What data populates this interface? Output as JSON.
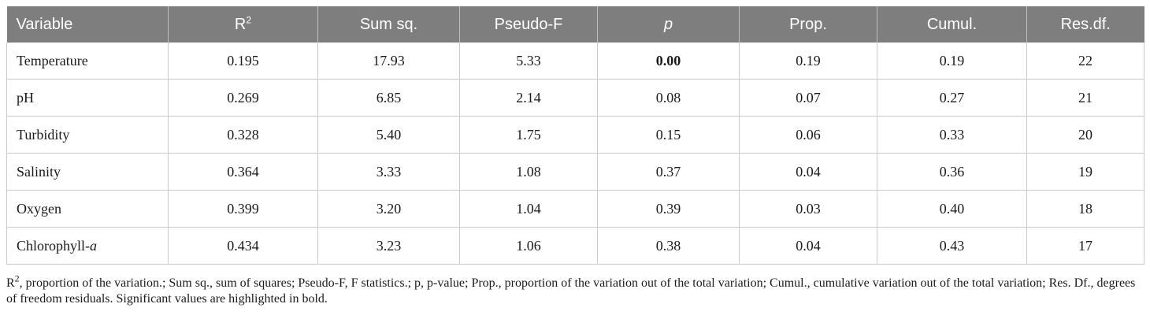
{
  "table": {
    "headers": {
      "variable": "Variable",
      "r_base": "R",
      "r_sup": "2",
      "sum_sq": "Sum sq.",
      "pseudo_f": "Pseudo-F",
      "p": "p",
      "prop": "Prop.",
      "cumul": "Cumul.",
      "res_df": "Res.df."
    },
    "rows": [
      {
        "variable": "Temperature",
        "var_italic": "",
        "r2": "0.195",
        "sum_sq": "17.93",
        "pseudo_f": "5.33",
        "p": "0.00",
        "prop": "0.19",
        "cumul": "0.19",
        "res_df": "22"
      },
      {
        "variable": "pH",
        "var_italic": "",
        "r2": "0.269",
        "sum_sq": "6.85",
        "pseudo_f": "2.14",
        "p": "0.08",
        "prop": "0.07",
        "cumul": "0.27",
        "res_df": "21"
      },
      {
        "variable": "Turbidity",
        "var_italic": "",
        "r2": "0.328",
        "sum_sq": "5.40",
        "pseudo_f": "1.75",
        "p": "0.15",
        "prop": "0.06",
        "cumul": "0.33",
        "res_df": "20"
      },
      {
        "variable": "Salinity",
        "var_italic": "",
        "r2": "0.364",
        "sum_sq": "3.33",
        "pseudo_f": "1.08",
        "p": "0.37",
        "prop": "0.04",
        "cumul": "0.36",
        "res_df": "19"
      },
      {
        "variable": "Oxygen",
        "var_italic": "",
        "r2": "0.399",
        "sum_sq": "3.20",
        "pseudo_f": "1.04",
        "p": "0.39",
        "prop": "0.03",
        "cumul": "0.40",
        "res_df": "18"
      },
      {
        "variable": "Chlorophyll-",
        "var_italic": "a",
        "r2": "0.434",
        "sum_sq": "3.23",
        "pseudo_f": "1.06",
        "p": "0.38",
        "prop": "0.04",
        "cumul": "0.43",
        "res_df": "17"
      }
    ]
  },
  "footnote": {
    "r_base": "R",
    "r_sup": "2",
    "text": ", proportion of the variation.; Sum sq., sum of squares; Pseudo-F, F statistics.; p, p-value; Prop., proportion of the variation out of the total variation; Cumul., cumulative variation out of the total variation; Res. Df., degrees of freedom residuals. Significant values are highlighted in bold."
  }
}
